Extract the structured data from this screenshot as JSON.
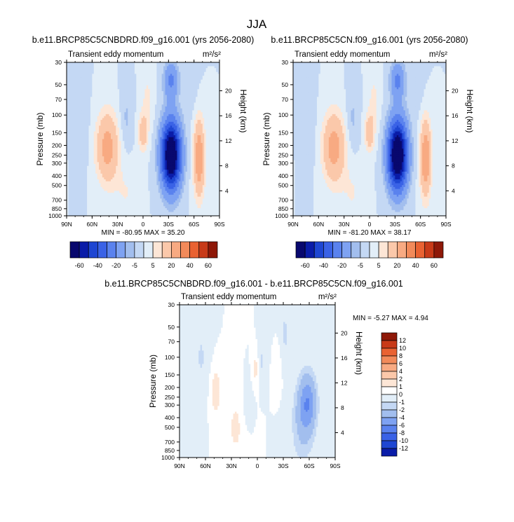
{
  "figure": {
    "title": "JJA"
  },
  "chart_data": [
    {
      "type": "heatmap",
      "title": "b.e11.BRCP85C5CNBDRD.f09_g16.001 (yrs 2056-2080)",
      "subtitle": "Transient eddy momentum",
      "units": "m²/s²",
      "xlabel": "",
      "ylabel": "Pressure (mb)",
      "ylabel_right": "Height (km)",
      "x_ticks": [
        "90N",
        "60N",
        "30N",
        "0",
        "30S",
        "60S",
        "90S"
      ],
      "y_ticks": [
        "30",
        "50",
        "70",
        "100",
        "150",
        "200",
        "250",
        "300",
        "400",
        "500",
        "700",
        "850",
        "1000"
      ],
      "y_right_ticks": [
        "20",
        "16",
        "12",
        "8",
        "4"
      ],
      "xlim": [
        90,
        -90
      ],
      "ylim": [
        1000,
        30
      ],
      "stats": "MIN = -80.95   MAX =  35.20",
      "features": [
        {
          "lat": 42,
          "p": 210,
          "amp": 25
        },
        {
          "lat": 0,
          "p": 150,
          "amp": 16
        },
        {
          "lat": -33,
          "p": 250,
          "amp": -81
        },
        {
          "lat": -66,
          "p": 270,
          "amp": 35
        }
      ]
    },
    {
      "type": "heatmap",
      "title": "b.e11.BRCP85C5CN.f09_g16.001 (yrs 2056-2080)",
      "subtitle": "Transient eddy momentum",
      "units": "m²/s²",
      "xlabel": "",
      "ylabel": "Pressure (mb)",
      "ylabel_right": "Height (km)",
      "x_ticks": [
        "90N",
        "60N",
        "30N",
        "0",
        "30S",
        "60S",
        "90S"
      ],
      "y_ticks": [
        "30",
        "50",
        "70",
        "100",
        "150",
        "200",
        "250",
        "300",
        "400",
        "500",
        "700",
        "850",
        "1000"
      ],
      "y_right_ticks": [
        "20",
        "16",
        "12",
        "8",
        "4"
      ],
      "xlim": [
        90,
        -90
      ],
      "ylim": [
        1000,
        30
      ],
      "stats": "MIN = -81.20   MAX =  38.17",
      "features": [
        {
          "lat": 42,
          "p": 210,
          "amp": 25
        },
        {
          "lat": 0,
          "p": 150,
          "amp": 16
        },
        {
          "lat": -33,
          "p": 250,
          "amp": -81
        },
        {
          "lat": -66,
          "p": 270,
          "amp": 38
        }
      ]
    },
    {
      "type": "heatmap",
      "title": "b.e11.BRCP85C5CNBDRD.f09_g16.001 - b.e11.BRCP85C5CN.f09_g16.001",
      "subtitle": "Transient eddy momentum",
      "units": "m²/s²",
      "xlabel": "",
      "ylabel": "Pressure (mb)",
      "ylabel_right": "Height (km)",
      "x_ticks": [
        "90N",
        "60N",
        "30N",
        "0",
        "30S",
        "60S",
        "90S"
      ],
      "y_ticks": [
        "30",
        "50",
        "70",
        "100",
        "150",
        "200",
        "250",
        "300",
        "400",
        "500",
        "700",
        "850",
        "1000"
      ],
      "y_right_ticks": [
        "20",
        "16",
        "12",
        "8",
        "4"
      ],
      "xlim": [
        90,
        -90
      ],
      "ylim": [
        1000,
        30
      ],
      "stats": "MIN = -5.27   MAX =   4.94",
      "features": [
        {
          "lat": -58,
          "p": 280,
          "amp": -5.3
        },
        {
          "lat": 48,
          "p": 220,
          "amp": 2
        },
        {
          "lat": 2,
          "p": 130,
          "amp": 1.5
        }
      ]
    }
  ],
  "colorbars": [
    {
      "orientation": "horizontal",
      "labels": [
        "-60",
        "-40",
        "-20",
        "-5",
        "5",
        "20",
        "40",
        "60"
      ],
      "colors": [
        "#08086e",
        "#0a1ca8",
        "#1e46d2",
        "#3a62e6",
        "#5a82ee",
        "#7ea2f2",
        "#a2beee",
        "#c4d8f4",
        "#e2eef8",
        "#fde6d6",
        "#fbc8aa",
        "#f8aa82",
        "#f28a5a",
        "#e96232",
        "#c83a18",
        "#8e1808"
      ]
    },
    {
      "orientation": "horizontal",
      "labels": [
        "-60",
        "-40",
        "-20",
        "-5",
        "5",
        "20",
        "40",
        "60"
      ],
      "colors": [
        "#08086e",
        "#0a1ca8",
        "#1e46d2",
        "#3a62e6",
        "#5a82ee",
        "#7ea2f2",
        "#a2beee",
        "#c4d8f4",
        "#e2eef8",
        "#fde6d6",
        "#fbc8aa",
        "#f8aa82",
        "#f28a5a",
        "#e96232",
        "#c83a18",
        "#8e1808"
      ]
    },
    {
      "orientation": "vertical",
      "labels": [
        "12",
        "10",
        "8",
        "6",
        "4",
        "2",
        "1",
        "0",
        "-1",
        "-2",
        "-4",
        "-6",
        "-8",
        "-10",
        "-12"
      ],
      "colors": [
        "#8e1808",
        "#c83a18",
        "#e96232",
        "#f28a5a",
        "#f8aa82",
        "#fbc8aa",
        "#fde6d6",
        "#ffffff",
        "#e2eef8",
        "#c4d8f4",
        "#a2beee",
        "#7ea2f2",
        "#5a82ee",
        "#3a62e6",
        "#1e46d2",
        "#0a1ca8"
      ]
    }
  ]
}
